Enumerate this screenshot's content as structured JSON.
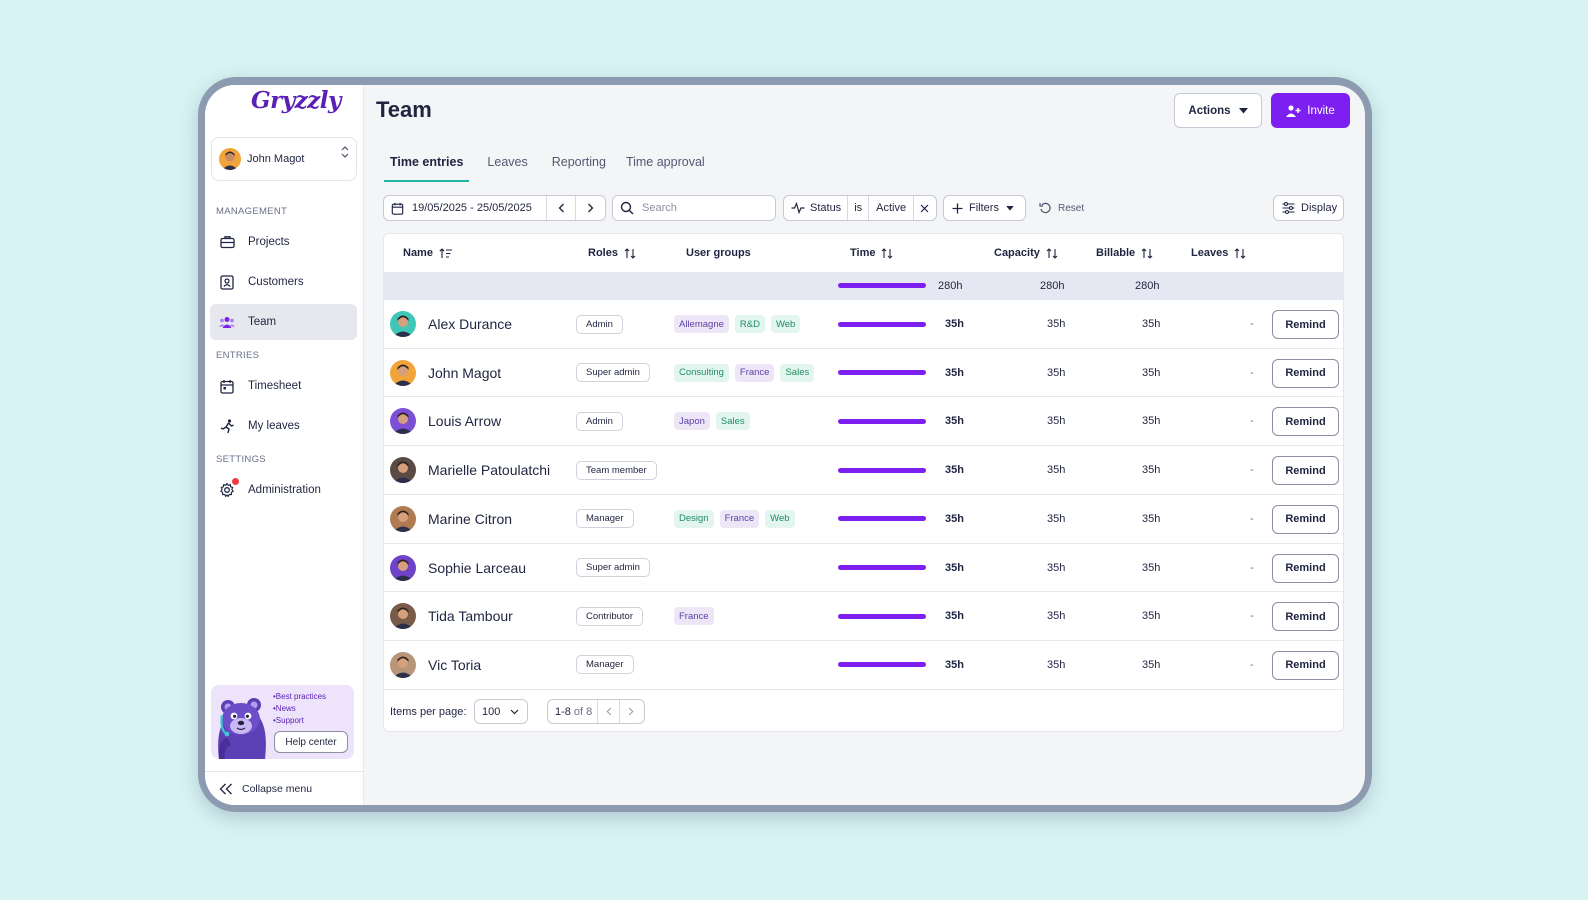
{
  "app": {
    "logo": "Gryzzly"
  },
  "user": {
    "name": "John Magot"
  },
  "sidebar": {
    "sections": [
      {
        "label": "MANAGEMENT"
      },
      {
        "label": "ENTRIES"
      },
      {
        "label": "SETTINGS"
      }
    ],
    "items": [
      {
        "label": "Projects",
        "icon": "briefcase-icon"
      },
      {
        "label": "Customers",
        "icon": "contact-card-icon"
      },
      {
        "label": "Team",
        "icon": "team-icon",
        "active": true
      },
      {
        "label": "Timesheet",
        "icon": "calendar-icon"
      },
      {
        "label": "My leaves",
        "icon": "running-person-icon"
      },
      {
        "label": "Administration",
        "icon": "gear-icon",
        "notification": true
      }
    ],
    "help": {
      "links": [
        "•Best practices",
        "•News",
        "•Support"
      ],
      "button": "Help center"
    },
    "collapse_label": "Collapse menu"
  },
  "header": {
    "title": "Team",
    "actions_label": "Actions",
    "invite_label": "Invite"
  },
  "tabs": [
    {
      "label": "Time entries",
      "active": true
    },
    {
      "label": "Leaves"
    },
    {
      "label": "Reporting"
    },
    {
      "label": "Time approval"
    }
  ],
  "toolbar": {
    "date_range": "19/05/2025 - 25/05/2025",
    "search_placeholder": "Search",
    "status_filter": {
      "field": "Status",
      "op": "is",
      "value": "Active"
    },
    "filters_label": "Filters",
    "reset_label": "Reset",
    "display_label": "Display"
  },
  "table": {
    "columns": {
      "name": "Name",
      "roles": "Roles",
      "user_groups": "User groups",
      "time": "Time",
      "capacity": "Capacity",
      "billable": "Billable",
      "leaves": "Leaves"
    },
    "totals": {
      "time": "280h",
      "capacity": "280h",
      "billable": "280h"
    },
    "remind_label": "Remind",
    "rows": [
      {
        "name": "Alex Durance",
        "role": "Admin",
        "groups": [
          {
            "label": "Allemagne",
            "color": "purple"
          },
          {
            "label": "R&D",
            "color": "green"
          },
          {
            "label": "Web",
            "color": "green"
          }
        ],
        "time": "35h",
        "capacity": "35h",
        "billable": "35h",
        "leaves": "-",
        "avatar_bg": "#3fc6b8",
        "progress": 1.0
      },
      {
        "name": "John Magot",
        "role": "Super admin",
        "groups": [
          {
            "label": "Consulting",
            "color": "green"
          },
          {
            "label": "France",
            "color": "purple"
          },
          {
            "label": "Sales",
            "color": "green"
          }
        ],
        "time": "35h",
        "capacity": "35h",
        "billable": "35h",
        "leaves": "-",
        "avatar_bg": "#f0a43a",
        "progress": 1.0
      },
      {
        "name": "Louis Arrow",
        "role": "Admin",
        "groups": [
          {
            "label": "Japon",
            "color": "purple"
          },
          {
            "label": "Sales",
            "color": "green"
          }
        ],
        "time": "35h",
        "capacity": "35h",
        "billable": "35h",
        "leaves": "-",
        "avatar_bg": "#7c4fd6",
        "progress": 1.0
      },
      {
        "name": "Marielle Patoulatchi",
        "role": "Team member",
        "groups": [],
        "time": "35h",
        "capacity": "35h",
        "billable": "35h",
        "leaves": "-",
        "avatar_bg": "#5a4a44",
        "progress": 1.0
      },
      {
        "name": "Marine Citron",
        "role": "Manager",
        "groups": [
          {
            "label": "Design",
            "color": "green"
          },
          {
            "label": "France",
            "color": "purple"
          },
          {
            "label": "Web",
            "color": "green"
          }
        ],
        "time": "35h",
        "capacity": "35h",
        "billable": "35h",
        "leaves": "-",
        "avatar_bg": "#b07a52",
        "progress": 1.0
      },
      {
        "name": "Sophie Larceau",
        "role": "Super admin",
        "groups": [],
        "time": "35h",
        "capacity": "35h",
        "billable": "35h",
        "leaves": "-",
        "avatar_bg": "#6f43c8",
        "progress": 1.0
      },
      {
        "name": "Tida Tambour",
        "role": "Contributor",
        "groups": [
          {
            "label": "France",
            "color": "purple"
          }
        ],
        "time": "35h",
        "capacity": "35h",
        "billable": "35h",
        "leaves": "-",
        "avatar_bg": "#7a5a48",
        "progress": 1.0
      },
      {
        "name": "Vic Toria",
        "role": "Manager",
        "groups": [],
        "time": "35h",
        "capacity": "35h",
        "billable": "35h",
        "leaves": "-",
        "avatar_bg": "#b89478",
        "progress": 1.0
      }
    ]
  },
  "pagination": {
    "items_per_page_label": "Items per page:",
    "items_per_page": "100",
    "range": "1-8",
    "of_label": "of 8"
  },
  "colors": {
    "accent": "#7c1ff0",
    "tab_underline": "#1fb6a3",
    "tag_green_bg": "#e2f5ee",
    "tag_green_text": "#1f8f63",
    "tag_purple_bg": "#ece6f7",
    "tag_purple_text": "#5b3fa8"
  }
}
